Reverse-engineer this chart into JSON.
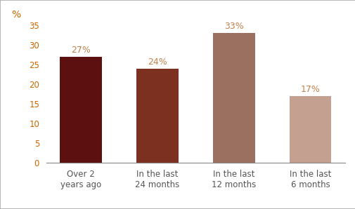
{
  "categories": [
    "Over 2\nyears ago",
    "In the last\n24 months",
    "In the last\n12 months",
    "In the last\n6 months"
  ],
  "values": [
    27,
    24,
    33,
    17
  ],
  "bar_colors": [
    "#5C1010",
    "#7B3020",
    "#9B7060",
    "#C4A090"
  ],
  "label_color": "#C0824D",
  "ylabel": "%",
  "ylim": [
    0,
    35
  ],
  "yticks": [
    0,
    5,
    10,
    15,
    20,
    25,
    30,
    35
  ],
  "background_color": "#ffffff",
  "border_color": "#aaaaaa",
  "tick_label_fontsize": 8.5,
  "value_label_fontsize": 9,
  "ylabel_color": "#CC6600",
  "ytick_color": "#CC6600"
}
